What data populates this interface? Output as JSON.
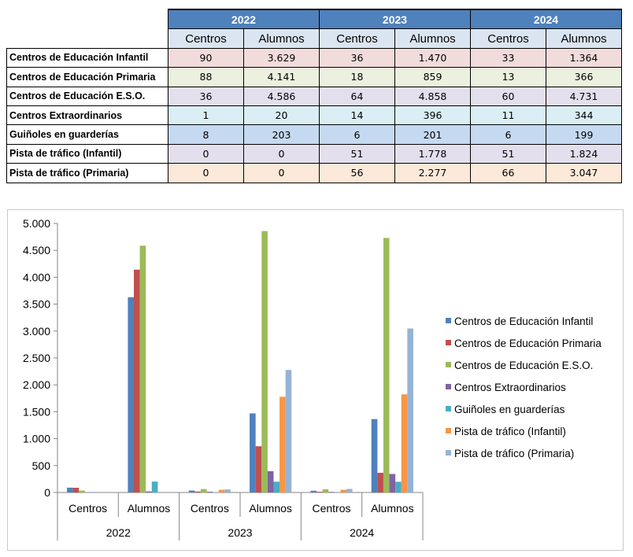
{
  "table": {
    "years": [
      "2022",
      "2023",
      "2024"
    ],
    "subheaders": [
      "Centros",
      "Alumnos"
    ],
    "rows": [
      {
        "label": "Centros de Educación Infantil",
        "values": [
          "90",
          "3.629",
          "36",
          "1.470",
          "33",
          "1.364"
        ],
        "color": "#f2dcdb"
      },
      {
        "label": "Centros de Educación Primaria",
        "values": [
          "88",
          "4.141",
          "18",
          "859",
          "13",
          "366"
        ],
        "color": "#ebf1de"
      },
      {
        "label": "Centros de Educación E.S.O.",
        "values": [
          "36",
          "4.586",
          "64",
          "4.858",
          "60",
          "4.731"
        ],
        "color": "#e4dfec"
      },
      {
        "label": "Centros Extraordinarios",
        "values": [
          "1",
          "20",
          "14",
          "396",
          "11",
          "344"
        ],
        "color": "#daeef3"
      },
      {
        "label": "Guiñoles en guarderías",
        "values": [
          "8",
          "203",
          "6",
          "201",
          "6",
          "199"
        ],
        "color": "#c5d9f1"
      },
      {
        "label": "Pista de tráfico (Infantil)",
        "values": [
          "0",
          "0",
          "51",
          "1.778",
          "51",
          "1.824"
        ],
        "color": "#e4dfec"
      },
      {
        "label": "Pista de tráfico (Primaria)",
        "values": [
          "0",
          "0",
          "56",
          "2.277",
          "66",
          "3.047"
        ],
        "color": "#fde9d9"
      }
    ]
  },
  "chart_data": {
    "type": "bar",
    "groups": [
      "2022",
      "2023",
      "2024"
    ],
    "categories": [
      "Centros",
      "Alumnos",
      "Centros",
      "Alumnos",
      "Centros",
      "Alumnos"
    ],
    "ylim": [
      0,
      5000
    ],
    "yticks": [
      0,
      500,
      1000,
      1500,
      2000,
      2500,
      3000,
      3500,
      4000,
      4500,
      5000
    ],
    "ytick_labels": [
      "0",
      "500",
      "1.000",
      "1.500",
      "2.000",
      "2.500",
      "3.000",
      "3.500",
      "4.000",
      "4.500",
      "5.000"
    ],
    "legend_position": "right",
    "series": [
      {
        "name": "Centros de Educación Infantil",
        "color": "#4f81bd",
        "values": [
          90,
          3629,
          36,
          1470,
          33,
          1364
        ]
      },
      {
        "name": "Centros de Educación Primaria",
        "color": "#c0504d",
        "values": [
          88,
          4141,
          18,
          859,
          13,
          366
        ]
      },
      {
        "name": "Centros de Educación E.S.O.",
        "color": "#9bbb59",
        "values": [
          36,
          4586,
          64,
          4858,
          60,
          4731
        ]
      },
      {
        "name": "Centros Extraordinarios",
        "color": "#8064a2",
        "values": [
          1,
          20,
          14,
          396,
          11,
          344
        ]
      },
      {
        "name": "Guiñoles en guarderías",
        "color": "#4bacc6",
        "values": [
          8,
          203,
          6,
          201,
          6,
          199
        ]
      },
      {
        "name": "Pista de tráfico (Infantil)",
        "color": "#f79646",
        "values": [
          0,
          0,
          51,
          1778,
          51,
          1824
        ]
      },
      {
        "name": "Pista de tráfico (Primaria)",
        "color": "#95b3d7",
        "values": [
          0,
          0,
          56,
          2277,
          66,
          3047
        ]
      }
    ]
  }
}
